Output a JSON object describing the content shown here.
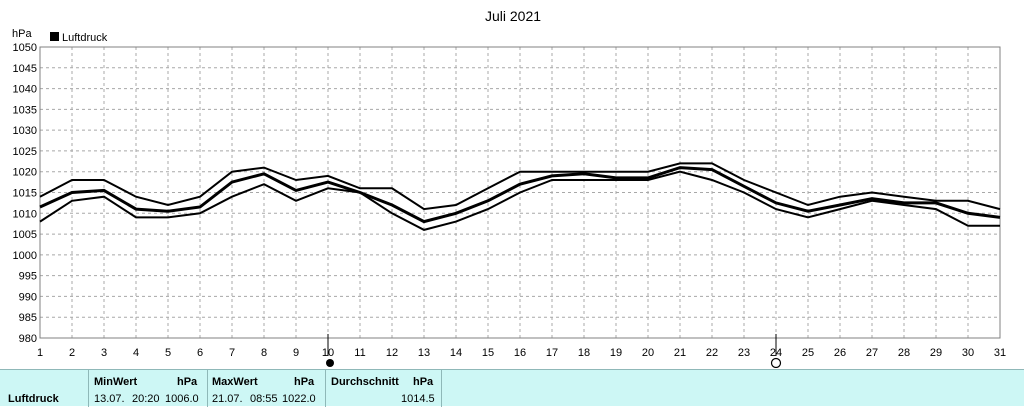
{
  "chart_data": {
    "type": "line",
    "title": "Juli 2021",
    "ylabel": "hPa",
    "legend": {
      "label": "Luftdruck",
      "placement": "top-left"
    },
    "ylim": [
      980,
      1050
    ],
    "yticks": [
      "980",
      "985",
      "990",
      "995",
      "1000",
      "1005",
      "1010",
      "1015",
      "1020",
      "1025",
      "1030",
      "1035",
      "1040",
      "1045",
      "1050"
    ],
    "x": [
      "1",
      "2",
      "3",
      "4",
      "5",
      "6",
      "7",
      "8",
      "9",
      "10",
      "11",
      "12",
      "13",
      "14",
      "15",
      "16",
      "17",
      "18",
      "19",
      "20",
      "21",
      "22",
      "23",
      "24",
      "25",
      "26",
      "27",
      "28",
      "29",
      "30",
      "31"
    ],
    "grid": true,
    "series": [
      {
        "role": "max",
        "values": [
          1014,
          1018,
          1018,
          1014,
          1012,
          1014,
          1020,
          1021,
          1018,
          1019,
          1016,
          1016,
          1011,
          1012,
          1016,
          1020,
          1020,
          1020,
          1020,
          1020,
          1022,
          1022,
          1018,
          1015,
          1012,
          1014,
          1015,
          1014,
          1013,
          1013,
          1011
        ]
      },
      {
        "role": "mean",
        "values": [
          1011.5,
          1015,
          1015.5,
          1011,
          1010.5,
          1011.5,
          1017.5,
          1019.5,
          1015.5,
          1017.5,
          1015,
          1012,
          1008,
          1010,
          1013,
          1017,
          1019,
          1019.5,
          1018.5,
          1018.5,
          1021,
          1020.5,
          1016.5,
          1012.5,
          1010.5,
          1012,
          1013.5,
          1012.5,
          1012.5,
          1010,
          1009
        ]
      },
      {
        "role": "min",
        "values": [
          1008,
          1013,
          1014,
          1009,
          1009,
          1010,
          1014,
          1017,
          1013,
          1016,
          1015,
          1010,
          1006,
          1008,
          1011,
          1015,
          1018,
          1018,
          1018,
          1018,
          1020,
          1018,
          1015,
          1011,
          1009,
          1011,
          1013,
          1012,
          1011,
          1007,
          1007
        ]
      }
    ],
    "markers": [
      {
        "x": "10",
        "symbol": "full-moon"
      },
      {
        "x": "24",
        "symbol": "new-moon"
      }
    ],
    "line_color": "#000000",
    "grid_color": "#a8a8a8"
  },
  "stats": {
    "row_label": "Luftdruck",
    "min": {
      "header": "MinWert",
      "unit": "hPa",
      "date": "13.07.",
      "time": "20:20",
      "value": "1006.0"
    },
    "max": {
      "header": "MaxWert",
      "unit": "hPa",
      "date": "21.07.",
      "time": "08:55",
      "value": "1022.0"
    },
    "avg": {
      "header": "Durchschnitt",
      "unit": "hPa",
      "value": "1014.5"
    },
    "background": "#cdf7f5"
  }
}
